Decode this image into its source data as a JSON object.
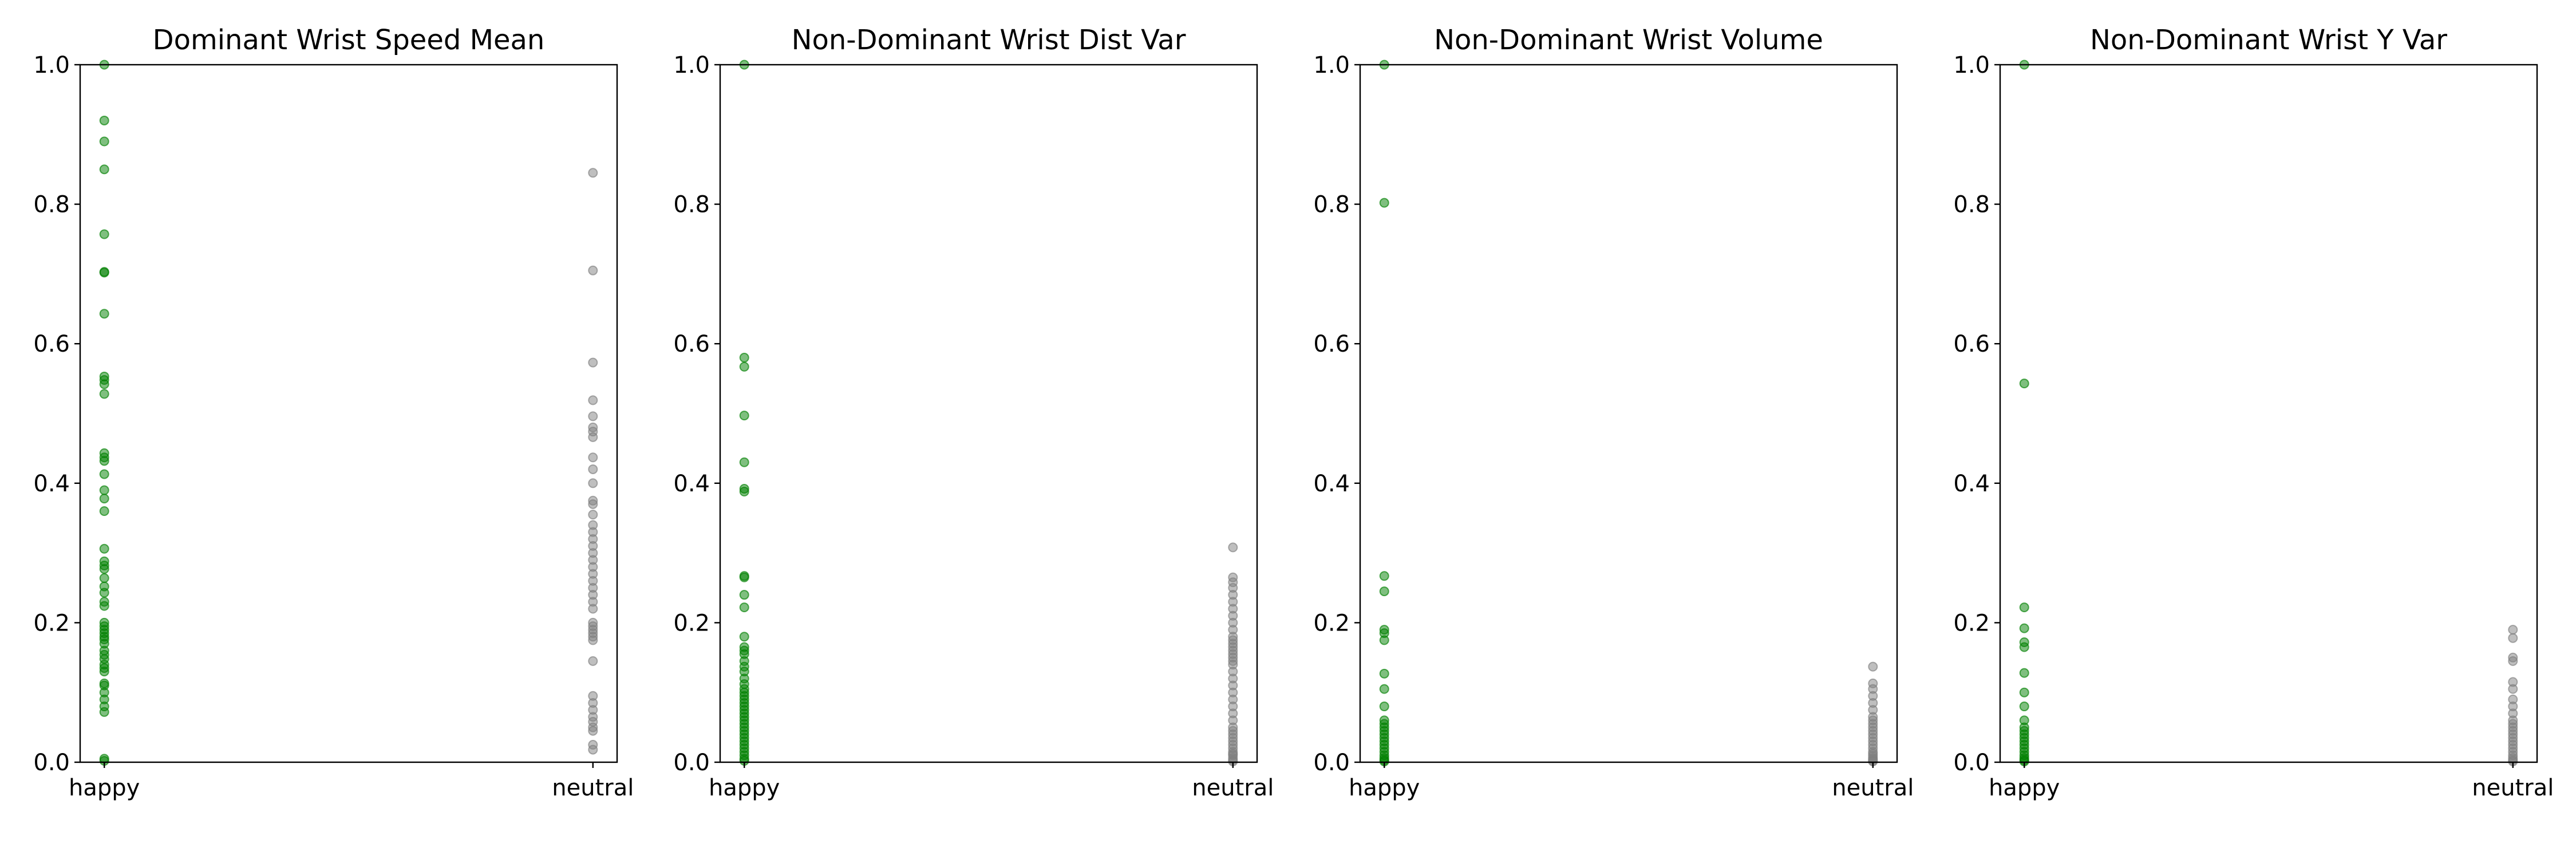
{
  "colors": {
    "happy": "#008000",
    "neutral": "#808080",
    "axes": "#000000",
    "background": "#ffffff"
  },
  "chart_data": [
    {
      "type": "scatter",
      "title": "Dominant Wrist Speed Mean",
      "categories": [
        "happy",
        "neutral"
      ],
      "ylim": [
        0,
        1
      ],
      "yticks": [
        "0.0",
        "0.2",
        "0.4",
        "0.6",
        "0.8",
        "1.0"
      ],
      "grid": false,
      "series": [
        {
          "category": "happy",
          "color": "#008000",
          "values": [
            1.0,
            0.92,
            0.89,
            0.85,
            0.757,
            0.703,
            0.702,
            0.643,
            0.553,
            0.548,
            0.542,
            0.528,
            0.443,
            0.437,
            0.432,
            0.413,
            0.39,
            0.378,
            0.36,
            0.306,
            0.288,
            0.282,
            0.277,
            0.264,
            0.252,
            0.243,
            0.23,
            0.224,
            0.2,
            0.195,
            0.19,
            0.185,
            0.18,
            0.176,
            0.17,
            0.16,
            0.154,
            0.148,
            0.14,
            0.135,
            0.13,
            0.113,
            0.11,
            0.1,
            0.09,
            0.08,
            0.072,
            0.005,
            0.002
          ]
        },
        {
          "category": "neutral",
          "color": "#808080",
          "values": [
            0.845,
            0.705,
            0.573,
            0.519,
            0.496,
            0.48,
            0.474,
            0.466,
            0.437,
            0.42,
            0.4,
            0.375,
            0.37,
            0.355,
            0.34,
            0.33,
            0.32,
            0.31,
            0.3,
            0.29,
            0.28,
            0.27,
            0.26,
            0.25,
            0.24,
            0.23,
            0.22,
            0.2,
            0.195,
            0.19,
            0.185,
            0.18,
            0.175,
            0.145,
            0.095,
            0.085,
            0.075,
            0.065,
            0.058,
            0.05,
            0.045,
            0.025,
            0.018
          ]
        }
      ]
    },
    {
      "type": "scatter",
      "title": "Non-Dominant Wrist Dist Var",
      "categories": [
        "happy",
        "neutral"
      ],
      "ylim": [
        0,
        1
      ],
      "yticks": [
        "0.0",
        "0.2",
        "0.4",
        "0.6",
        "0.8",
        "1.0"
      ],
      "grid": false,
      "series": [
        {
          "category": "happy",
          "color": "#008000",
          "values": [
            1.0,
            0.58,
            0.567,
            0.497,
            0.43,
            0.392,
            0.388,
            0.267,
            0.265,
            0.24,
            0.222,
            0.18,
            0.165,
            0.16,
            0.155,
            0.145,
            0.137,
            0.13,
            0.12,
            0.112,
            0.105,
            0.1,
            0.095,
            0.09,
            0.085,
            0.08,
            0.075,
            0.07,
            0.065,
            0.06,
            0.055,
            0.05,
            0.045,
            0.04,
            0.035,
            0.03,
            0.025,
            0.02,
            0.015,
            0.01,
            0.005,
            0.002
          ]
        },
        {
          "category": "neutral",
          "color": "#808080",
          "values": [
            0.308,
            0.265,
            0.258,
            0.25,
            0.24,
            0.23,
            0.22,
            0.21,
            0.2,
            0.19,
            0.18,
            0.175,
            0.17,
            0.165,
            0.16,
            0.155,
            0.15,
            0.145,
            0.14,
            0.13,
            0.12,
            0.11,
            0.1,
            0.09,
            0.08,
            0.07,
            0.06,
            0.05,
            0.045,
            0.04,
            0.035,
            0.03,
            0.025,
            0.02,
            0.015,
            0.012,
            0.01,
            0.006,
            0.003,
            0.001
          ]
        }
      ]
    },
    {
      "type": "scatter",
      "title": "Non-Dominant Wrist Volume",
      "categories": [
        "happy",
        "neutral"
      ],
      "ylim": [
        0,
        1
      ],
      "yticks": [
        "0.0",
        "0.2",
        "0.4",
        "0.6",
        "0.8",
        "1.0"
      ],
      "grid": false,
      "series": [
        {
          "category": "happy",
          "color": "#008000",
          "values": [
            1.0,
            0.802,
            0.267,
            0.245,
            0.19,
            0.185,
            0.175,
            0.127,
            0.105,
            0.08,
            0.06,
            0.055,
            0.05,
            0.045,
            0.04,
            0.035,
            0.03,
            0.025,
            0.02,
            0.015,
            0.01,
            0.006,
            0.003,
            0.001
          ]
        },
        {
          "category": "neutral",
          "color": "#808080",
          "values": [
            0.137,
            0.113,
            0.105,
            0.095,
            0.085,
            0.075,
            0.065,
            0.06,
            0.055,
            0.05,
            0.045,
            0.04,
            0.035,
            0.03,
            0.025,
            0.02,
            0.015,
            0.012,
            0.009,
            0.006,
            0.004,
            0.002,
            0.001
          ]
        }
      ]
    },
    {
      "type": "scatter",
      "title": "Non-Dominant Wrist Y Var",
      "categories": [
        "happy",
        "neutral"
      ],
      "ylim": [
        0,
        1
      ],
      "yticks": [
        "0.0",
        "0.2",
        "0.4",
        "0.6",
        "0.8",
        "1.0"
      ],
      "grid": false,
      "series": [
        {
          "category": "happy",
          "color": "#008000",
          "values": [
            1.0,
            0.543,
            0.222,
            0.192,
            0.172,
            0.165,
            0.128,
            0.1,
            0.08,
            0.06,
            0.05,
            0.045,
            0.04,
            0.035,
            0.03,
            0.025,
            0.02,
            0.015,
            0.01,
            0.006,
            0.003,
            0.001
          ]
        },
        {
          "category": "neutral",
          "color": "#808080",
          "values": [
            0.19,
            0.178,
            0.15,
            0.145,
            0.115,
            0.105,
            0.09,
            0.08,
            0.07,
            0.06,
            0.055,
            0.05,
            0.045,
            0.04,
            0.035,
            0.03,
            0.025,
            0.02,
            0.015,
            0.01,
            0.006,
            0.003,
            0.001
          ]
        }
      ]
    }
  ]
}
